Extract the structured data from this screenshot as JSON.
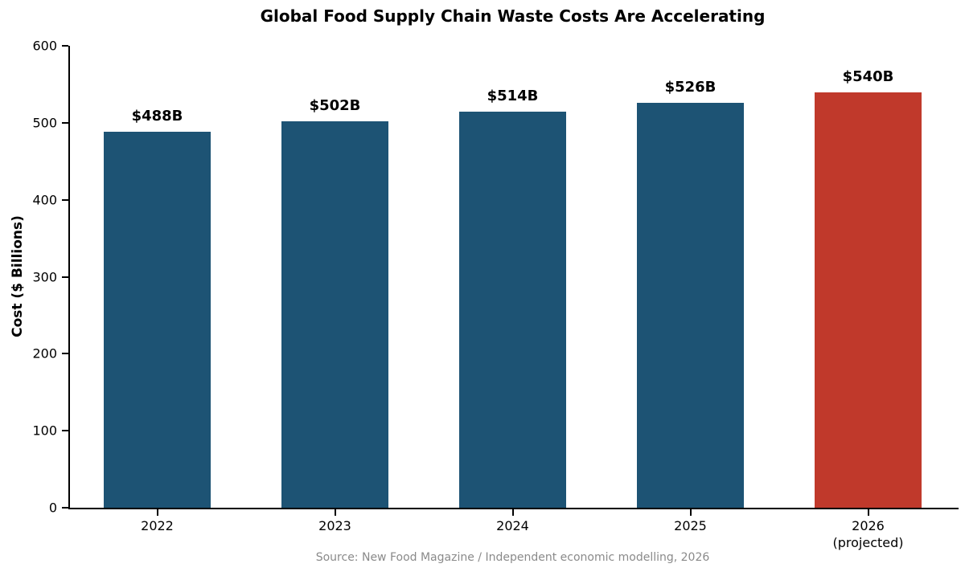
{
  "chart_data": {
    "type": "bar",
    "title": "Global Food Supply Chain Waste Costs Are Accelerating",
    "xlabel": "",
    "ylabel": "Cost ($ Billions)",
    "categories": [
      "2022",
      "2023",
      "2024",
      "2025",
      "2026"
    ],
    "category_sublabels": [
      "",
      "",
      "",
      "",
      "(projected)"
    ],
    "values": [
      488,
      502,
      514,
      526,
      540
    ],
    "bar_labels": [
      "$488B",
      "$502B",
      "$514B",
      "$526B",
      "$540B"
    ],
    "ylim": [
      0,
      600
    ],
    "yticks": [
      0,
      100,
      200,
      300,
      400,
      500,
      600
    ],
    "grid": false,
    "legend": null,
    "colors": {
      "bar_default": "#1d5374",
      "bar_highlight": "#c0392b",
      "highlight_index": 4,
      "axis": "#000000",
      "source_text": "#8a8a8a"
    },
    "source": "Source: New Food Magazine / Independent economic modelling, 2026"
  }
}
